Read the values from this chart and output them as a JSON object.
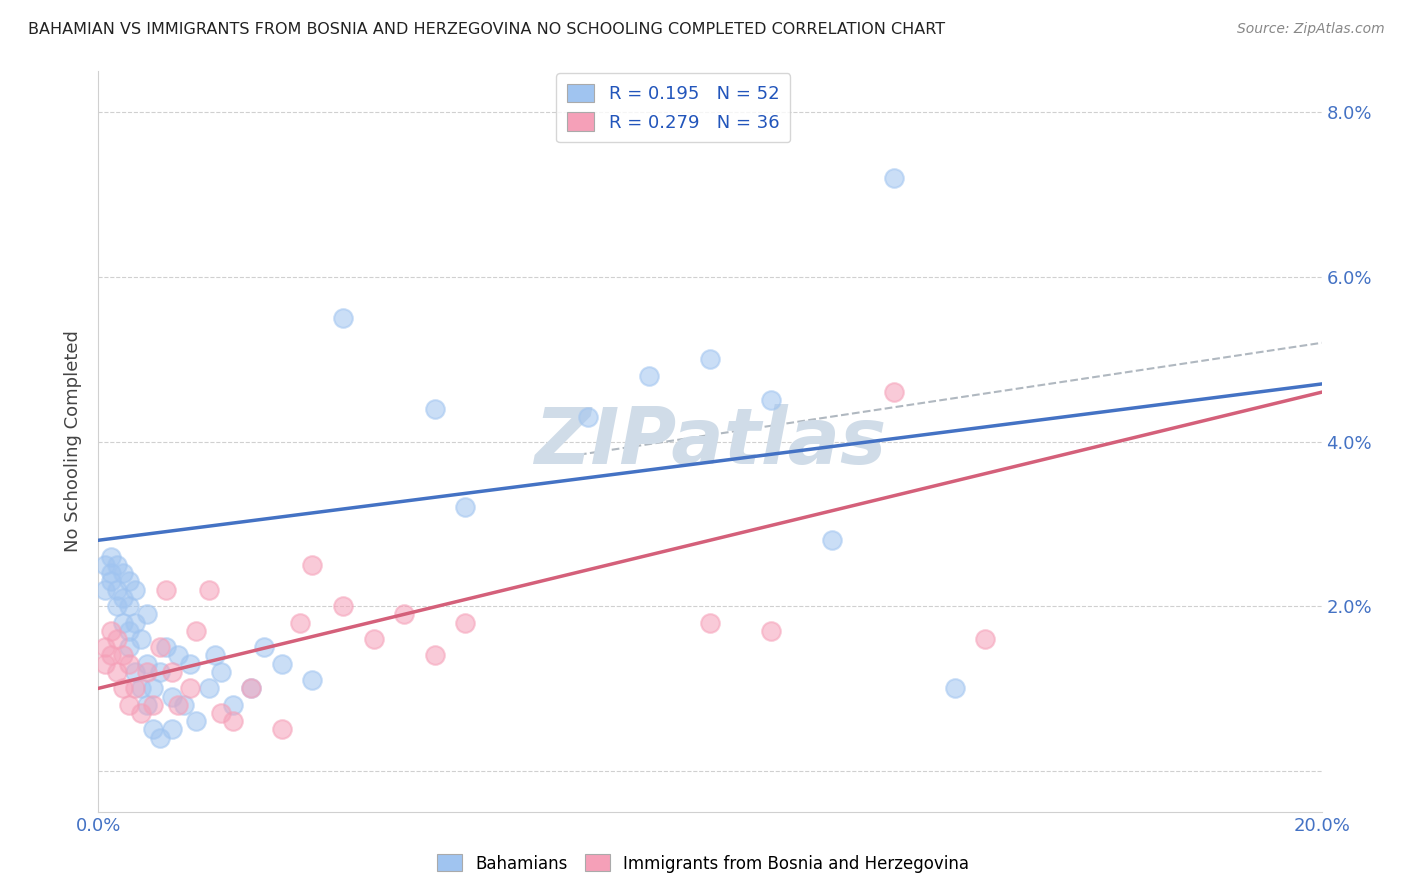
{
  "title": "BAHAMIAN VS IMMIGRANTS FROM BOSNIA AND HERZEGOVINA NO SCHOOLING COMPLETED CORRELATION CHART",
  "source": "Source: ZipAtlas.com",
  "ylabel": "No Schooling Completed",
  "xlim": [
    0,
    0.2
  ],
  "ylim": [
    -0.005,
    0.085
  ],
  "ytick_positions": [
    0.0,
    0.02,
    0.04,
    0.06,
    0.08
  ],
  "xtick_positions": [
    0.0,
    0.05,
    0.1,
    0.15,
    0.2
  ],
  "blue_color": "#a0c4f0",
  "pink_color": "#f5a0b8",
  "blue_line_color": "#4472c4",
  "pink_line_color": "#d4607a",
  "dashed_line_color": "#b0b8c0",
  "background_color": "#ffffff",
  "watermark": "ZIPatlas",
  "watermark_color": "#d0dce8",
  "bahamians_x": [
    0.001,
    0.001,
    0.002,
    0.002,
    0.002,
    0.003,
    0.003,
    0.003,
    0.004,
    0.004,
    0.004,
    0.005,
    0.005,
    0.005,
    0.005,
    0.006,
    0.006,
    0.006,
    0.007,
    0.007,
    0.008,
    0.008,
    0.008,
    0.009,
    0.009,
    0.01,
    0.01,
    0.011,
    0.012,
    0.012,
    0.013,
    0.014,
    0.015,
    0.016,
    0.018,
    0.019,
    0.02,
    0.022,
    0.025,
    0.027,
    0.03,
    0.035,
    0.04,
    0.055,
    0.06,
    0.08,
    0.09,
    0.1,
    0.11,
    0.12,
    0.13,
    0.14
  ],
  "bahamians_y": [
    0.025,
    0.022,
    0.023,
    0.024,
    0.026,
    0.02,
    0.022,
    0.025,
    0.018,
    0.021,
    0.024,
    0.015,
    0.017,
    0.02,
    0.023,
    0.012,
    0.018,
    0.022,
    0.01,
    0.016,
    0.008,
    0.013,
    0.019,
    0.005,
    0.01,
    0.004,
    0.012,
    0.015,
    0.005,
    0.009,
    0.014,
    0.008,
    0.013,
    0.006,
    0.01,
    0.014,
    0.012,
    0.008,
    0.01,
    0.015,
    0.013,
    0.011,
    0.055,
    0.044,
    0.032,
    0.043,
    0.048,
    0.05,
    0.045,
    0.028,
    0.072,
    0.01
  ],
  "bosnia_x": [
    0.001,
    0.001,
    0.002,
    0.002,
    0.003,
    0.003,
    0.004,
    0.004,
    0.005,
    0.005,
    0.006,
    0.007,
    0.008,
    0.009,
    0.01,
    0.011,
    0.012,
    0.013,
    0.015,
    0.016,
    0.018,
    0.02,
    0.022,
    0.025,
    0.03,
    0.033,
    0.035,
    0.04,
    0.045,
    0.05,
    0.055,
    0.06,
    0.1,
    0.11,
    0.13,
    0.145
  ],
  "bosnia_y": [
    0.015,
    0.013,
    0.014,
    0.017,
    0.012,
    0.016,
    0.01,
    0.014,
    0.008,
    0.013,
    0.01,
    0.007,
    0.012,
    0.008,
    0.015,
    0.022,
    0.012,
    0.008,
    0.01,
    0.017,
    0.022,
    0.007,
    0.006,
    0.01,
    0.005,
    0.018,
    0.025,
    0.02,
    0.016,
    0.019,
    0.014,
    0.018,
    0.018,
    0.017,
    0.046,
    0.016
  ],
  "blue_line_x0": 0.0,
  "blue_line_y0": 0.028,
  "blue_line_x1": 0.2,
  "blue_line_y1": 0.047,
  "pink_line_x0": 0.0,
  "pink_line_y0": 0.01,
  "pink_line_x1": 0.2,
  "pink_line_y1": 0.046,
  "dash_line_x0": 0.075,
  "dash_line_y0": 0.038,
  "dash_line_x1": 0.2,
  "dash_line_y1": 0.052
}
